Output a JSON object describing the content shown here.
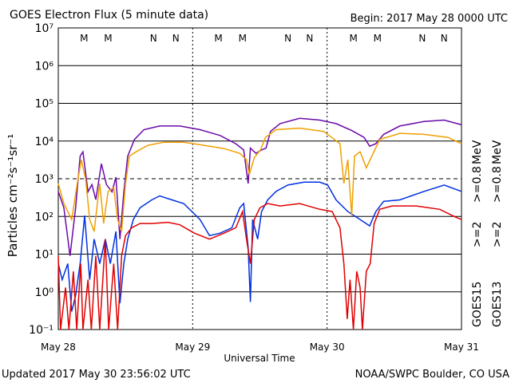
{
  "chart_data": {
    "type": "line",
    "title": "GOES Electron Flux (5 minute data)",
    "subtitle": "Begin: 2017 May 28 0000 UTC",
    "ylabel": "Particles cm⁻²s⁻¹sr⁻¹",
    "xlabel": "Universal Time",
    "footer_left": "Updated 2017 May 30 23:56:02 UTC",
    "footer_right": "NOAA/SWPC Boulder, CO USA",
    "log_y": true,
    "grid": true,
    "threshold_line": 1000,
    "xlim": [
      0,
      72
    ],
    "xticks": [
      {
        "value": 0,
        "label": "May 28"
      },
      {
        "value": 24,
        "label": "May 29"
      },
      {
        "value": 48,
        "label": "May 30"
      },
      {
        "value": 72,
        "label": "May 31"
      }
    ],
    "ylim": [
      0.1,
      10000000
    ],
    "yticks": [
      {
        "value": 0.1,
        "label": "10⁻¹"
      },
      {
        "value": 1,
        "label": "10⁰"
      },
      {
        "value": 10,
        "label": "10¹"
      },
      {
        "value": 100,
        "label": "10²"
      },
      {
        "value": 1000,
        "label": "10³"
      },
      {
        "value": 10000,
        "label": "10⁴"
      },
      {
        "value": 100000,
        "label": "10⁵"
      },
      {
        "value": 1000000,
        "label": "10⁶"
      },
      {
        "value": 10000000,
        "label": "10⁷"
      }
    ],
    "unit": "MeV",
    "markers": [
      {
        "label": "M",
        "x": 4.6,
        "color": "#e00000"
      },
      {
        "label": "M",
        "x": 8.9,
        "color": "#0030e0"
      },
      {
        "label": "N",
        "x": 17,
        "color": "#e00000"
      },
      {
        "label": "N",
        "x": 21,
        "color": "#0030e0"
      },
      {
        "label": "M",
        "x": 28.6,
        "color": "#e00000"
      },
      {
        "label": "M",
        "x": 32.9,
        "color": "#0030e0"
      },
      {
        "label": "N",
        "x": 41,
        "color": "#e00000"
      },
      {
        "label": "N",
        "x": 44.9,
        "color": "#0030e0"
      },
      {
        "label": "M",
        "x": 52.7,
        "color": "#e00000"
      },
      {
        "label": "M",
        "x": 57,
        "color": "#0030e0"
      },
      {
        "label": "N",
        "x": 65,
        "color": "#e00000"
      },
      {
        "label": "N",
        "x": 68.9,
        "color": "#0030e0"
      }
    ],
    "series": [
      {
        "name": ">=0.8",
        "satellite": "GOES15",
        "color": "#6a0aa8",
        "x": [
          0,
          1,
          2.1,
          3.1,
          3.9,
          4.4,
          5.3,
          6,
          6.7,
          7.7,
          8.6,
          9.6,
          10.3,
          11,
          11.7,
          12.4,
          13.6,
          15.3,
          18.1,
          21.7,
          25.3,
          28.9,
          31.7,
          33.1,
          33.9,
          34.3,
          35.3,
          36.3,
          37.1,
          37.9,
          39.6,
          43.1,
          46.7,
          49.6,
          52.4,
          54.6,
          55.6,
          56.7,
          58.1,
          61,
          65.3,
          68.9,
          72
        ],
        "values": [
          460,
          170,
          9,
          170,
          4000,
          5200,
          450,
          700,
          280,
          2500,
          700,
          450,
          1100,
          25,
          450,
          4000,
          11000,
          20000,
          25000,
          25000,
          20000,
          14000,
          8500,
          5800,
          750,
          6500,
          4700,
          5800,
          6500,
          18000,
          29000,
          40000,
          36000,
          29000,
          19000,
          12500,
          7300,
          8500,
          15000,
          25000,
          33000,
          36000,
          27000
        ]
      },
      {
        "name": ">=2",
        "satellite": "GOES15",
        "color": "#0030e0",
        "x": [
          0,
          0.7,
          1.7,
          2.4,
          3.1,
          3.9,
          4.7,
          5.6,
          6.4,
          7.4,
          8.4,
          9.3,
          10.3,
          11,
          11.7,
          12.4,
          13.4,
          14.6,
          16.7,
          18.1,
          20.3,
          22.4,
          25.3,
          27,
          28.9,
          31,
          32.4,
          33.1,
          33.9,
          34.3,
          34.7,
          35.6,
          36.3,
          37.4,
          38.9,
          41,
          43.9,
          46.7,
          48.1,
          49.6,
          51.7,
          53.9,
          55.6,
          56.7,
          58.1,
          61,
          65.3,
          68.9,
          72
        ],
        "values": [
          5.6,
          2.1,
          5.6,
          0.3,
          0.8,
          5.6,
          105,
          2.1,
          25,
          5.6,
          25,
          5.6,
          40,
          0.5,
          5.6,
          25,
          83,
          170,
          275,
          350,
          275,
          220,
          83,
          31,
          36,
          50,
          170,
          220,
          15,
          0.54,
          83,
          25,
          135,
          275,
          460,
          680,
          810,
          810,
          680,
          275,
          135,
          83,
          56,
          135,
          250,
          275,
          460,
          680,
          460
        ]
      },
      {
        "name": ">=0.8",
        "satellite": "GOES13",
        "color": "#f0a000",
        "x": [
          0,
          1,
          2.4,
          3.4,
          4.1,
          4.9,
          5.6,
          6.4,
          7.4,
          8.1,
          8.9,
          9.9,
          10.6,
          11.3,
          12,
          12.7,
          13.9,
          16,
          18.9,
          22.4,
          26,
          29.6,
          32.4,
          33.6,
          34.1,
          35,
          36.1,
          37,
          38.9,
          43.1,
          47.4,
          50.3,
          51,
          51.7,
          52.4,
          52.9,
          53.9,
          55,
          56,
          57.4,
          61,
          65.3,
          69.6,
          72
        ],
        "values": [
          750,
          220,
          83,
          750,
          3200,
          930,
          83,
          40,
          750,
          65,
          460,
          580,
          83,
          40,
          750,
          4000,
          5200,
          7700,
          9300,
          9300,
          7700,
          6300,
          4700,
          3200,
          1300,
          3600,
          5800,
          12500,
          20000,
          22000,
          18000,
          8500,
          750,
          3200,
          105,
          4000,
          5200,
          1950,
          4000,
          11000,
          16000,
          15000,
          12500,
          8500
        ]
      },
      {
        "name": ">=2",
        "satellite": "GOES13",
        "color": "#e00000",
        "x": [
          0,
          0.4,
          1.3,
          1.9,
          2.7,
          3.3,
          4,
          4.4,
          5.3,
          5.9,
          6.7,
          7.4,
          8.4,
          9,
          9.9,
          10.6,
          11.3,
          12,
          13.1,
          14.6,
          16.7,
          19.6,
          21.7,
          24.3,
          27,
          29.6,
          31.7,
          32.9,
          33.6,
          34.3,
          35,
          36,
          37.4,
          39.6,
          43.1,
          46.7,
          48.9,
          50.3,
          51,
          51.6,
          52.1,
          52.7,
          53.3,
          53.9,
          54.3,
          55,
          55.7,
          56.4,
          57.4,
          59.6,
          63.9,
          68.1,
          71,
          72
        ],
        "values": [
          9,
          0.1,
          1.3,
          0.1,
          3.5,
          0.1,
          5.6,
          0.1,
          2.1,
          0.1,
          9,
          0.1,
          25,
          0.1,
          5.6,
          0.1,
          9,
          31,
          50,
          65,
          65,
          70,
          60,
          36,
          25,
          36,
          50,
          135,
          25,
          5.6,
          83,
          170,
          220,
          190,
          220,
          155,
          135,
          50,
          5.6,
          0.19,
          2.1,
          0.1,
          3.5,
          1.3,
          0.1,
          3.5,
          5.6,
          65,
          155,
          190,
          190,
          155,
          95,
          83
        ]
      }
    ]
  }
}
